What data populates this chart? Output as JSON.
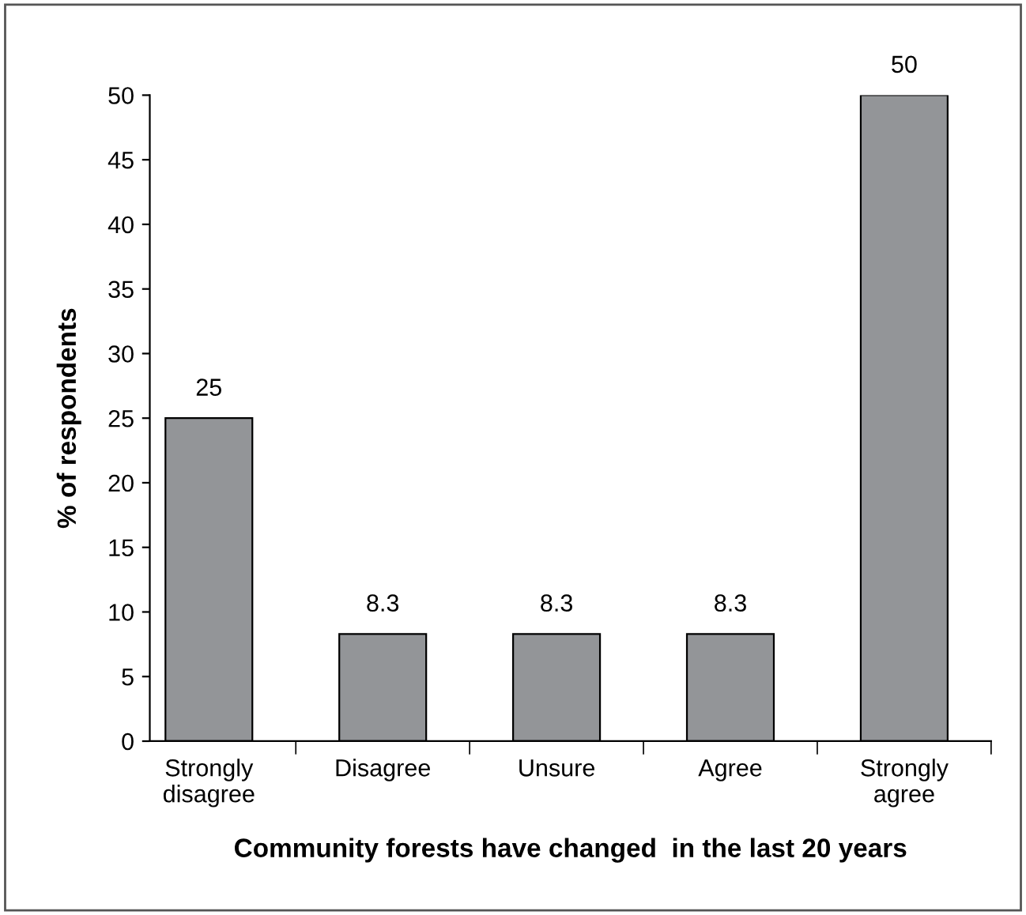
{
  "chart_data": {
    "type": "bar",
    "xlabel": "Community forests have changed  in the last 20 years",
    "ylabel": "% of respondents",
    "categories": [
      "Strongly\ndisagree",
      "Disagree",
      "Unsure",
      "Agree",
      "Strongly\nagree"
    ],
    "values": [
      25,
      8.3,
      8.3,
      8.3,
      50
    ],
    "color": "#939598",
    "ylim": [
      0,
      50
    ],
    "yticks": [
      0,
      5,
      10,
      15,
      20,
      25,
      30,
      35,
      40,
      45,
      50
    ],
    "grid": false,
    "data_labels": true
  }
}
